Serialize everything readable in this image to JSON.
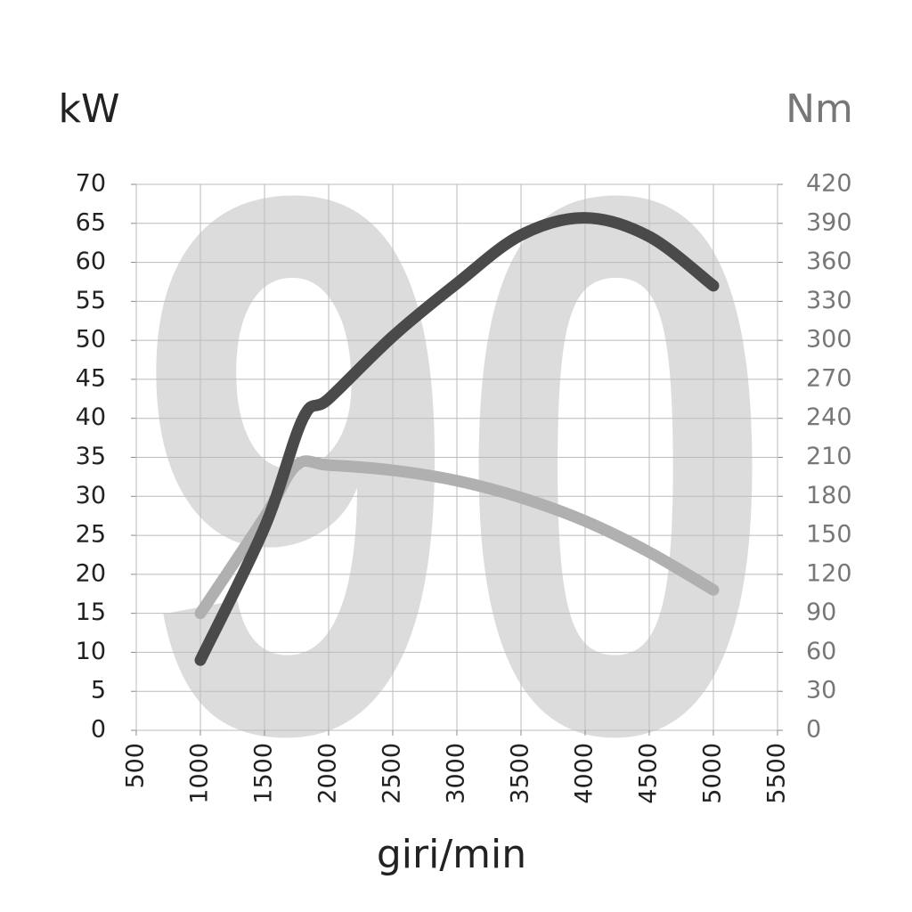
{
  "chart_data": {
    "type": "line",
    "watermark": "90",
    "y_title": "kW",
    "y2_title": "Nm",
    "x_title": "giri/min",
    "xlim": [
      500,
      5500
    ],
    "xticks": [
      500,
      1000,
      1500,
      2000,
      2500,
      3000,
      3500,
      4000,
      4500,
      5000,
      5500
    ],
    "ylim": [
      0,
      70
    ],
    "yticks": [
      0,
      5,
      10,
      15,
      20,
      25,
      30,
      35,
      40,
      45,
      50,
      55,
      60,
      65,
      70
    ],
    "y2lim": [
      0,
      420
    ],
    "y2ticks": [
      0,
      30,
      60,
      90,
      120,
      150,
      180,
      210,
      240,
      270,
      300,
      330,
      360,
      390,
      420
    ],
    "grid": true,
    "series": [
      {
        "color": "#4a4a4a",
        "x": [
          1000,
          1500,
          1800,
          2000,
          2500,
          3000,
          3500,
          4000,
          4500,
          5000
        ],
        "values": [
          9,
          26,
          40,
          42.5,
          50.5,
          57.3,
          63.5,
          65.7,
          63.3,
          57
        ]
      },
      {
        "color": "#b0b0b0",
        "axis": "y2",
        "x": [
          1000,
          1500,
          1750,
          2000,
          2500,
          3000,
          3500,
          4000,
          4500,
          5000
        ],
        "values": [
          90,
          164,
          204,
          204,
          200,
          192,
          179,
          161,
          137,
          108
        ]
      }
    ]
  }
}
